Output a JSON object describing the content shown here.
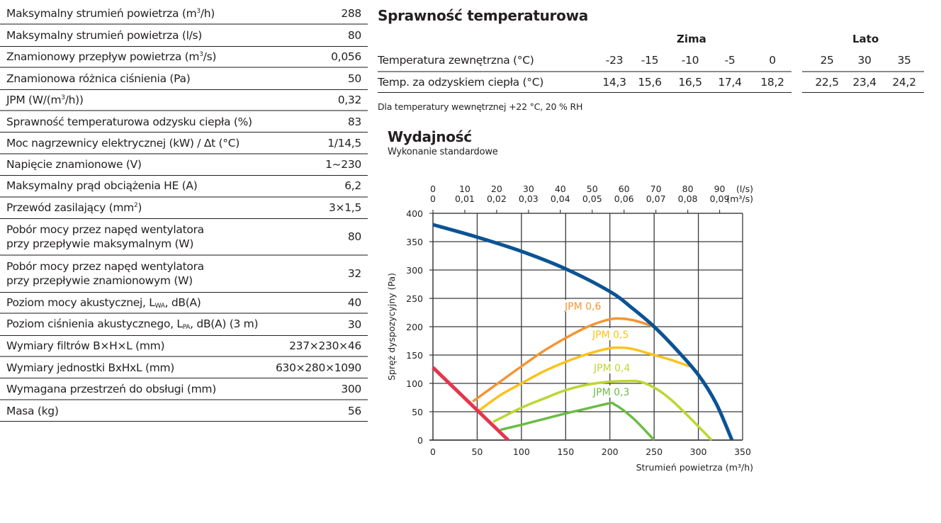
{
  "specs": [
    {
      "label": "Maksymalny strumień powietrza (m³/h)",
      "value": "288"
    },
    {
      "label": "Maksymalny strumień powietrza (l/s)",
      "value": "80"
    },
    {
      "label": "Znamionowy przepływ powietrza (m³/s)",
      "value": "0,056"
    },
    {
      "label": "Znamionowa różnica ciśnienia (Pa)",
      "value": "50"
    },
    {
      "label": "JPM (W/(m³/h))",
      "value": "0,32"
    },
    {
      "label": "Sprawność temperaturowa odzysku ciepła (%)",
      "value": "83"
    },
    {
      "label": "Moc nagrzewnicy elektrycznej (kW) / Δt (°C)",
      "value": "1/14,5"
    },
    {
      "label": "Napięcie znamionowe (V)",
      "value": "1~230"
    },
    {
      "label": "Maksymalny prąd obciążenia HE (A)",
      "value": "6,2"
    },
    {
      "label": "Przewód zasilający (mm²)",
      "value": "3×1,5"
    },
    {
      "label": "Pobór mocy przez napęd wentylatora\nprzy przepływie maksymalnym (W)",
      "value": "80"
    },
    {
      "label": "Pobór mocy przez napęd wentylatora\nprzy przepływie znamionowym (W)",
      "value": "32"
    },
    {
      "label": "Poziom mocy akustycznej, L",
      "sub": "WA",
      "label_tail": ", dB(A)",
      "value": "40"
    },
    {
      "label": "Poziom ciśnienia akustycznego, L",
      "sub": "PA",
      "label_tail": ", dB(A) (3 m)",
      "value": "30"
    },
    {
      "label": "Wymiary filtrów B×H×L (mm)",
      "value": "237×230×46"
    },
    {
      "label": "Wymiary jednostki BxHxL (mm)",
      "value": "630×280×1090"
    },
    {
      "label": "Wymagana przestrzeń do obsługi (mm)",
      "value": "300"
    },
    {
      "label": "Masa (kg)",
      "value": "56"
    }
  ],
  "efficiency": {
    "title": "Sprawność temperaturowa",
    "winter_label": "Zima",
    "summer_label": "Lato",
    "row1_label": "Temperatura zewnętrzna (°C)",
    "row2_label": "Temp. za odzyskiem ciepła (°C)",
    "outside_temps": [
      "-23",
      "-15",
      "-10",
      "-5",
      "0",
      "25",
      "30",
      "35"
    ],
    "recovered_temps": [
      "14,3",
      "15,6",
      "16,5",
      "17,4",
      "18,2",
      "22,5",
      "23,4",
      "24,2"
    ],
    "note": "Dla temperatury wewnętrznej +22 °C, 20 % RH"
  },
  "chart_title": "Wydajność",
  "chart_subtitle": "Wykonanie standardowe",
  "chart_data": {
    "type": "line",
    "title": "Wydajność",
    "xlabel": "Strumień powietrza (m³/h)",
    "ylabel": "Spręż dyspozycyjny (Pa)",
    "xlim": [
      0,
      350
    ],
    "ylim": [
      0,
      400
    ],
    "xticks": [
      "0",
      "50",
      "100",
      "150",
      "200",
      "250",
      "300",
      "350"
    ],
    "yticks": [
      "0",
      "50",
      "100",
      "150",
      "200",
      "250",
      "300",
      "350",
      "400"
    ],
    "grid": true,
    "top_axis": {
      "ls_ticks": [
        "0",
        "10",
        "20",
        "30",
        "40",
        "50",
        "60",
        "70",
        "80",
        "90"
      ],
      "ls_unit": "(l/s)",
      "m3s_ticks": [
        "0",
        "0,01",
        "0,02",
        "0,03",
        "0,04",
        "0,05",
        "0,06",
        "0,07",
        "0,08",
        "0,09"
      ],
      "m3s_unit": "(m³/s)"
    },
    "series": [
      {
        "name": "fan-curve",
        "label": "",
        "color": "#0b5394",
        "x": [
          0,
          50,
          100,
          150,
          200,
          225,
          250,
          275,
          300,
          320,
          338
        ],
        "y": [
          380,
          358,
          333,
          302,
          262,
          233,
          200,
          160,
          115,
          65,
          0
        ]
      },
      {
        "name": "JPM 0,6",
        "label": "JPM 0,6",
        "color": "#f39533",
        "x": [
          45,
          75,
          100,
          125,
          150,
          175,
          200,
          215,
          230,
          250
        ],
        "y": [
          68,
          102,
          130,
          157,
          180,
          200,
          213,
          214,
          210,
          200
        ]
      },
      {
        "name": "JPM 0,5",
        "label": "JPM 0,5",
        "color": "#fcc21b",
        "x": [
          52,
          75,
          100,
          125,
          150,
          175,
          200,
          210,
          225,
          250,
          270,
          290
        ],
        "y": [
          52,
          78,
          100,
          121,
          138,
          152,
          162,
          163,
          161,
          150,
          141,
          130
        ]
      },
      {
        "name": "JPM 0,4",
        "label": "JPM 0,4",
        "color": "#bcd631",
        "x": [
          68,
          100,
          125,
          150,
          175,
          200,
          215,
          230,
          240,
          255,
          270,
          290,
          315
        ],
        "y": [
          32,
          57,
          73,
          88,
          98,
          103,
          104,
          104,
          100,
          88,
          70,
          40,
          0
        ]
      },
      {
        "name": "JPM 0,3",
        "label": "JPM 0,3",
        "color": "#6bbc45",
        "x": [
          76,
          100,
          125,
          150,
          175,
          200,
          205,
          215,
          230,
          250
        ],
        "y": [
          18,
          27,
          37,
          47,
          56,
          65,
          63,
          53,
          33,
          0
        ]
      },
      {
        "name": "limit-line",
        "label": "",
        "color": "#e4354f",
        "x": [
          0,
          85
        ],
        "y": [
          128,
          0
        ]
      }
    ]
  }
}
